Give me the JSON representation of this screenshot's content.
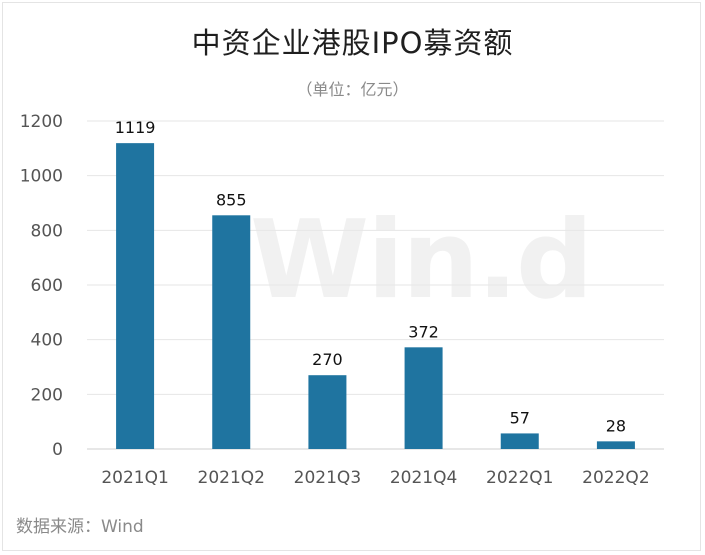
{
  "chart_data": {
    "type": "bar",
    "title": "中资企业港股IPO募资额",
    "subtitle": "（单位：亿元）",
    "categories": [
      "2021Q1",
      "2021Q2",
      "2021Q3",
      "2021Q4",
      "2022Q1",
      "2022Q2"
    ],
    "values": [
      1119,
      855,
      270,
      372,
      57,
      28
    ],
    "data_labels": [
      "1119",
      "855",
      "270",
      "372",
      "57",
      "28"
    ],
    "ylim": [
      0,
      1200
    ],
    "y_ticks": [
      0,
      200,
      400,
      600,
      800,
      1000,
      1200
    ],
    "grid": true,
    "legend": "none",
    "bar_color": "#1f74a0",
    "source": "数据来源：Wind",
    "watermark": "Win.d"
  }
}
